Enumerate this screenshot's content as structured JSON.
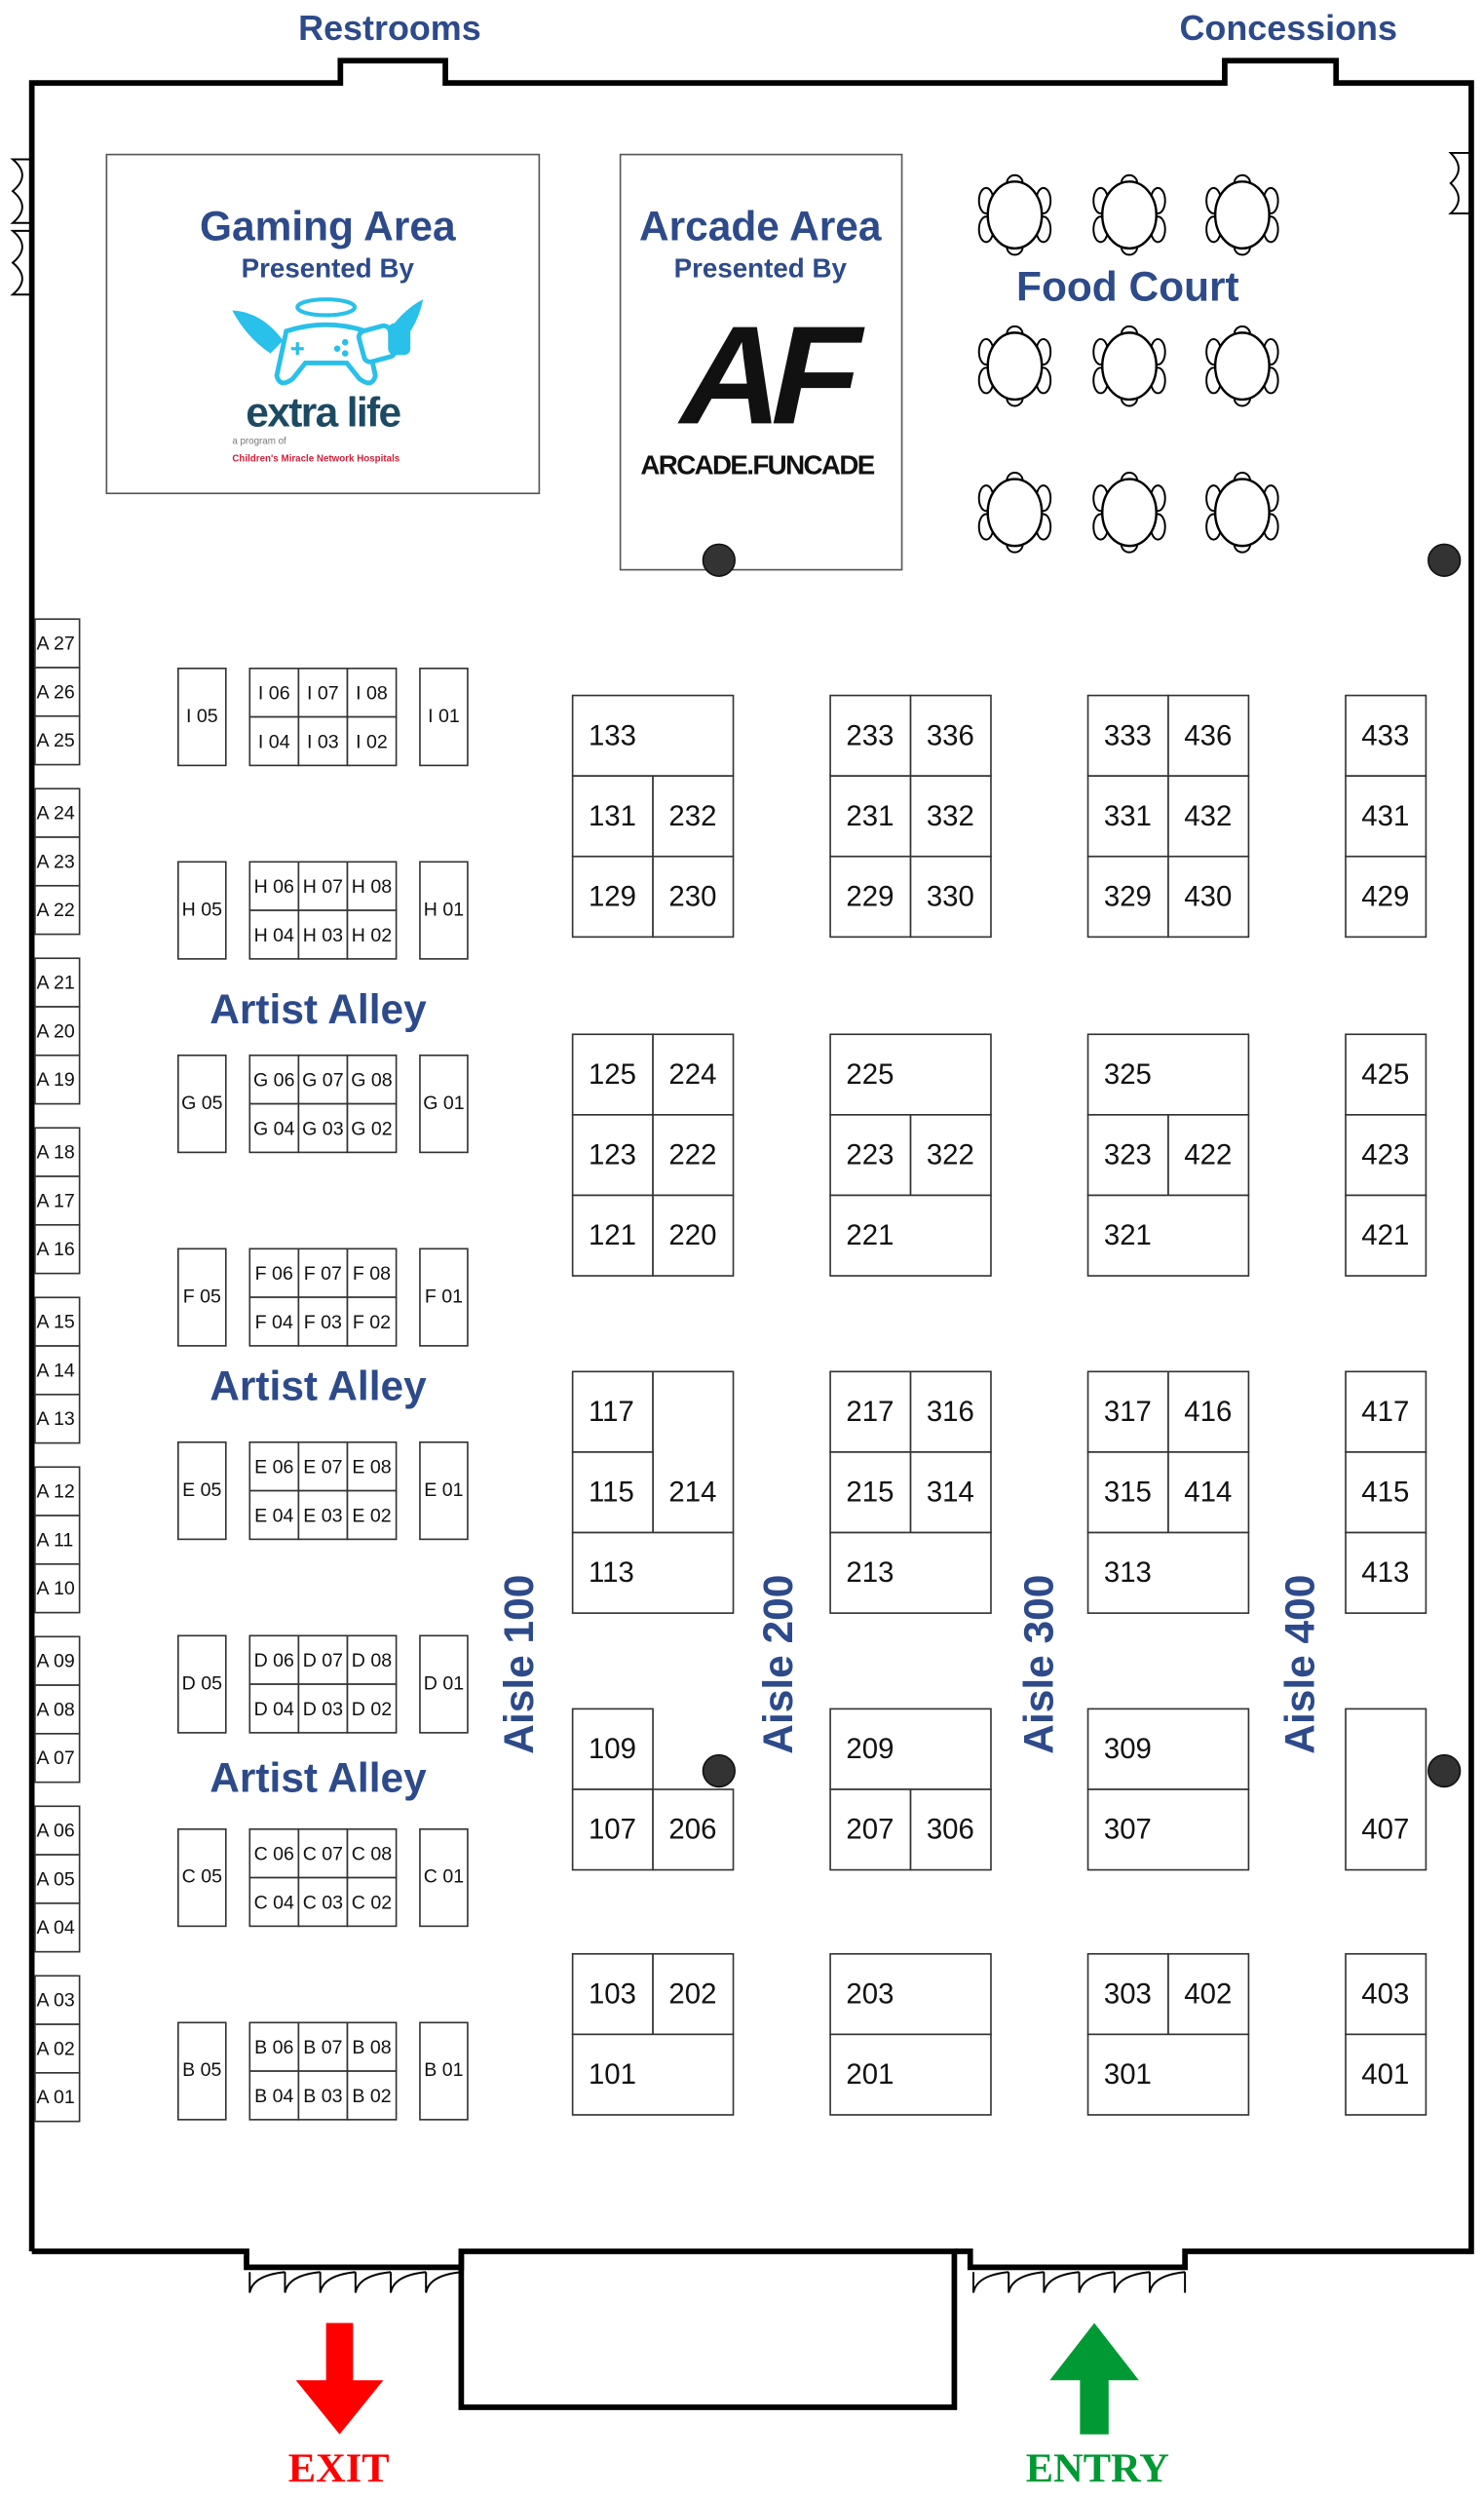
{
  "labels": {
    "restrooms": "Restrooms",
    "concessions": "Concessions",
    "food_court": "Food Court",
    "exit": "EXIT",
    "entry": "ENTRY"
  },
  "gaming_area": {
    "title": "Gaming Area",
    "subtitle": "Presented By",
    "logo_text": "extra life",
    "logo_tagline": "a program of",
    "logo_org": "Children's Miracle Network Hospitals"
  },
  "arcade_area": {
    "title": "Arcade Area",
    "subtitle": "Presented By",
    "logo_mark": "AF",
    "logo_text": "ARCADE.FUNCADE"
  },
  "artist_alley_labels": [
    "Artist Alley",
    "Artist Alley",
    "Artist Alley"
  ],
  "aisles": [
    "Aisle 100",
    "Aisle 200",
    "Aisle 300",
    "Aisle 400"
  ],
  "wall_booths": [
    "A 27",
    "A 26",
    "A 25",
    "A 24",
    "A 23",
    "A 22",
    "A 21",
    "A 20",
    "A 19",
    "A 18",
    "A 17",
    "A 16",
    "A 15",
    "A 14",
    "A 13",
    "A 12",
    "A 11",
    "A 10",
    "A 09",
    "A 08",
    "A 07",
    "A 06",
    "A 05",
    "A 04",
    "A 03",
    "A 02",
    "A 01"
  ],
  "artist_rows": [
    [
      "I 05",
      "I 06",
      "I 07",
      "I 08",
      "I 04",
      "I 03",
      "I 02",
      "I 01"
    ],
    [
      "H 05",
      "H 06",
      "H 07",
      "H 08",
      "H 04",
      "H 03",
      "H 02",
      "H 01"
    ],
    [
      "G 05",
      "G 06",
      "G 07",
      "G 08",
      "G 04",
      "G 03",
      "G 02",
      "G 01"
    ],
    [
      "F 05",
      "F 06",
      "F 07",
      "F 08",
      "F 04",
      "F 03",
      "F 02",
      "F 01"
    ],
    [
      "E 05",
      "E 06",
      "E 07",
      "E 08",
      "E 04",
      "E 03",
      "E 02",
      "E 01"
    ],
    [
      "D 05",
      "D 06",
      "D 07",
      "D 08",
      "D 04",
      "D 03",
      "D 02",
      "D 01"
    ],
    [
      "C 05",
      "C 06",
      "C 07",
      "C 08",
      "C 04",
      "C 03",
      "C 02",
      "C 01"
    ],
    [
      "B 05",
      "B 06",
      "B 07",
      "B 08",
      "B 04",
      "B 03",
      "B 02",
      "B 01"
    ]
  ],
  "booth_blocks": [
    [
      [
        "133",
        "131",
        "232",
        "129",
        "230"
      ],
      [
        "233",
        "336",
        "231",
        "332",
        "229",
        "330"
      ],
      [
        "333",
        "436",
        "331",
        "432",
        "329",
        "430"
      ],
      [
        "433",
        "431",
        "429"
      ]
    ],
    [
      [
        "125",
        "224",
        "123",
        "222",
        "121",
        "220"
      ],
      [
        "225",
        "223",
        "322",
        "221"
      ],
      [
        "325",
        "323",
        "422",
        "321"
      ],
      [
        "425",
        "423",
        "421"
      ]
    ],
    [
      [
        "117",
        "214",
        "115",
        "113"
      ],
      [
        "217",
        "316",
        "215",
        "314",
        "213"
      ],
      [
        "317",
        "416",
        "315",
        "414",
        "313"
      ],
      [
        "417",
        "415",
        "413"
      ]
    ],
    [
      [
        "109",
        "107",
        "206"
      ],
      [
        "209",
        "207",
        "306"
      ],
      [
        "309",
        "307"
      ],
      [
        "407"
      ]
    ],
    [
      [
        "103",
        "202",
        "101"
      ],
      [
        "203",
        "201"
      ],
      [
        "303",
        "402",
        "301"
      ],
      [
        "403",
        "401"
      ]
    ]
  ],
  "colors": {
    "title_blue": "#2d4a8a",
    "exit_red": "#ff0000",
    "entry_green": "#009933",
    "logo_cyan": "#29c0ea",
    "logo_teal": "#1d4a63",
    "logo_red": "#d0203a"
  }
}
